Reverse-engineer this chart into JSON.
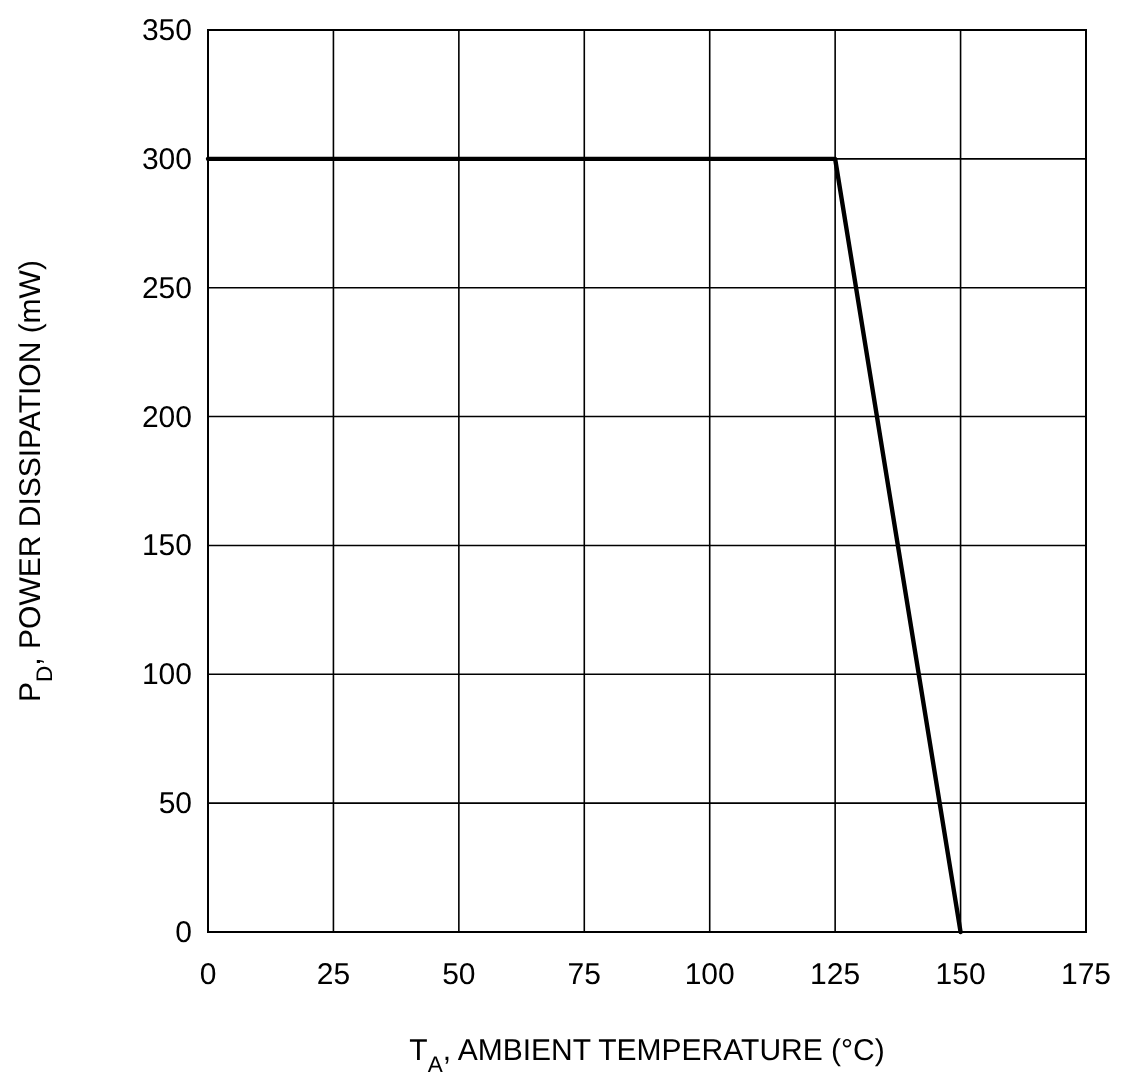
{
  "chart_data": {
    "type": "line",
    "xlabel": "T$_{A}$, AMBIENT TEMPERATURE (°C)",
    "ylabel": "P$_{D}$, POWER DISSIPATION (mW)",
    "x": [
      0,
      125,
      150
    ],
    "series": [
      {
        "color": "#000000",
        "values": [
          300,
          300,
          0
        ]
      }
    ],
    "xlim": [
      0,
      175
    ],
    "xticks": [
      0,
      25,
      50,
      75,
      100,
      125,
      150,
      175
    ],
    "ylim": [
      0,
      350
    ],
    "yticks": [
      0,
      50,
      100,
      150,
      200,
      250,
      300,
      350
    ],
    "grid": true,
    "marker": "none",
    "line_style": "solid"
  }
}
